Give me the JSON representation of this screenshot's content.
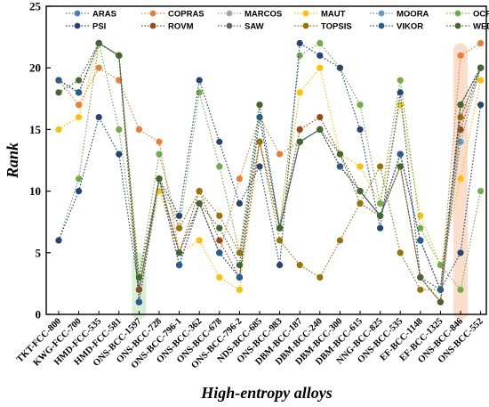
{
  "chart_data": {
    "type": "line",
    "xlabel": "High-entropy alloys",
    "ylabel": "Rank",
    "ylim": [
      0,
      25
    ],
    "yticks": [
      0,
      5,
      10,
      15,
      20,
      25
    ],
    "grid": false,
    "legend": "top, 3 rows",
    "categories": [
      "TKT-FCC-800",
      "KWG-FCC-700",
      "HMD-FCC-535",
      "HMD-FCC-581",
      "ONS-BCC-1597",
      "ONS-BCC-728",
      "ONS-BCC-796-1",
      "ONS-BCC-362",
      "ONS-BCC-678",
      "ONS-BCC-796-2",
      "NDS-BCC-685",
      "ONS-BCC-983",
      "DBM-BCC-187",
      "DBM-BCC-240",
      "DBM-BCC-300",
      "DBM-BCC-615",
      "NNG-BCC-825",
      "ONS-BCC-535",
      "EF-BCC-1148",
      "EF-BCC-1325",
      "ONS-BCC-846",
      "ONS-BCC-552"
    ],
    "highlights": [
      {
        "category": "ONS-BCC-1597",
        "color": "#8fd18a"
      },
      {
        "category": "ONS-BCC-846",
        "color": "#f2a97e"
      }
    ],
    "series": [
      {
        "name": "ARAS",
        "color": "#4a7ebb",
        "values": [
          19,
          18,
          22,
          21,
          1,
          11,
          4,
          9,
          5,
          3,
          16,
          7,
          14,
          15,
          12,
          10,
          8,
          13,
          6,
          2,
          17,
          20
        ]
      },
      {
        "name": "COPRAS",
        "color": "#ed7d31",
        "values": [
          19,
          17,
          20,
          19,
          15,
          14,
          5,
          9,
          5,
          11,
          16,
          13,
          14,
          15,
          12,
          10,
          8,
          13,
          6,
          2,
          21,
          22
        ]
      },
      {
        "name": "MARCOS",
        "color": "#a5a5a5",
        "values": [
          19,
          18,
          22,
          21,
          1,
          11,
          4,
          9,
          5,
          3,
          16,
          7,
          14,
          15,
          12,
          10,
          8,
          13,
          6,
          2,
          17,
          20
        ]
      },
      {
        "name": "MAUT",
        "color": "#ffc000",
        "values": [
          15,
          16,
          22,
          21,
          2,
          10,
          5,
          6,
          3,
          2,
          14,
          7,
          18,
          20,
          13,
          12,
          9,
          17,
          8,
          4,
          11,
          19
        ]
      },
      {
        "name": "MOORA",
        "color": "#5b9bd5",
        "values": [
          19,
          18,
          22,
          21,
          1,
          11,
          4,
          9,
          5,
          3,
          16,
          7,
          14,
          15,
          12,
          10,
          8,
          13,
          6,
          2,
          14,
          20
        ]
      },
      {
        "name": "OCRA",
        "color": "#70ad47",
        "values": [
          6,
          11,
          22,
          15,
          3,
          13,
          7,
          18,
          12,
          5,
          17,
          7,
          21,
          22,
          20,
          17,
          9,
          19,
          7,
          4,
          2,
          10
        ]
      },
      {
        "name": "PSI",
        "color": "#264478",
        "values": [
          6,
          10,
          16,
          13,
          2,
          11,
          8,
          19,
          14,
          9,
          12,
          4,
          22,
          21,
          20,
          15,
          7,
          18,
          3,
          2,
          5,
          17
        ]
      },
      {
        "name": "ROVM",
        "color": "#9e480e",
        "values": [
          19,
          18,
          22,
          21,
          2,
          11,
          5,
          10,
          6,
          3,
          14,
          7,
          15,
          16,
          13,
          9,
          8,
          12,
          3,
          1,
          15,
          20
        ]
      },
      {
        "name": "SAW",
        "color": "#636363",
        "values": [
          19,
          18,
          22,
          21,
          1,
          11,
          4,
          9,
          5,
          3,
          16,
          7,
          14,
          15,
          12,
          10,
          8,
          13,
          6,
          2,
          16,
          20
        ]
      },
      {
        "name": "TOPSIS",
        "color": "#997300",
        "values": [
          19,
          18,
          22,
          21,
          1,
          11,
          7,
          10,
          8,
          5,
          14,
          6,
          4,
          3,
          6,
          9,
          12,
          5,
          2,
          2,
          16,
          20
        ]
      },
      {
        "name": "VIKOR",
        "color": "#255e91",
        "values": [
          19,
          18,
          22,
          21,
          1,
          11,
          4,
          9,
          5,
          3,
          16,
          7,
          14,
          15,
          12,
          10,
          8,
          13,
          6,
          2,
          17,
          20
        ]
      },
      {
        "name": "WEDBA",
        "color": "#43682b",
        "values": [
          18,
          19,
          22,
          21,
          3,
          11,
          5,
          9,
          7,
          4,
          17,
          7,
          14,
          15,
          13,
          10,
          8,
          12,
          3,
          1,
          17,
          20
        ]
      }
    ]
  }
}
